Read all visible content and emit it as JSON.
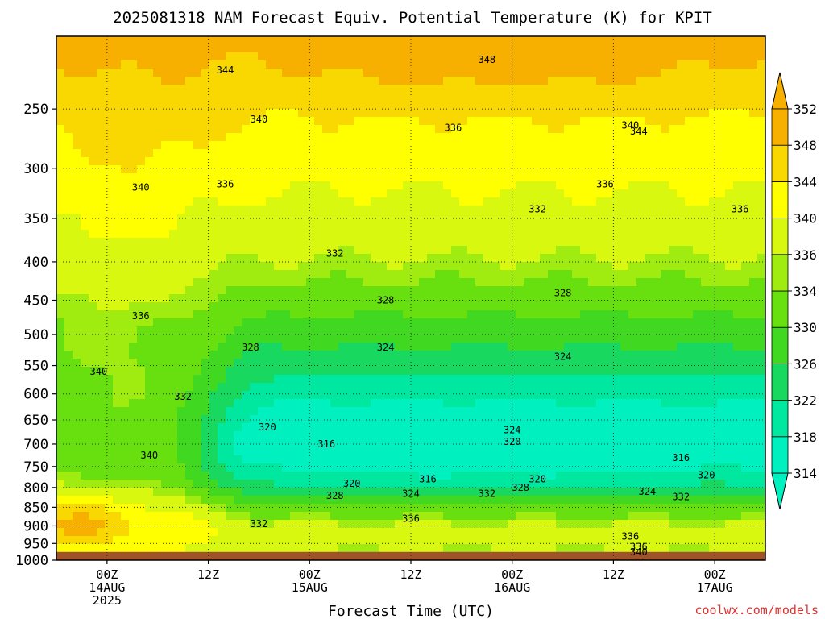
{
  "chart_data": {
    "type": "heatmap",
    "title": "2025081318 NAM Forecast Equiv. Potential Temperature (K) for KPIT",
    "xlabel": "Forecast Time (UTC)",
    "ylabel": "",
    "credit": "coolwx.com/models",
    "y_axis": {
      "scale": "log-pressure",
      "ticks": [
        250,
        300,
        350,
        400,
        450,
        500,
        550,
        600,
        650,
        700,
        750,
        800,
        850,
        900,
        950,
        1000
      ],
      "range": [
        200,
        1000
      ]
    },
    "x_axis": {
      "range": [
        "2025-08-13 18Z",
        "2025-08-17 06Z"
      ],
      "ticks": [
        {
          "x": "2025-08-14 00Z",
          "labels": [
            "00Z",
            "14AUG",
            "2025"
          ]
        },
        {
          "x": "2025-08-14 12Z",
          "labels": [
            "12Z"
          ]
        },
        {
          "x": "2025-08-15 00Z",
          "labels": [
            "00Z",
            "15AUG"
          ]
        },
        {
          "x": "2025-08-15 12Z",
          "labels": [
            "12Z"
          ]
        },
        {
          "x": "2025-08-16 00Z",
          "labels": [
            "00Z",
            "16AUG"
          ]
        },
        {
          "x": "2025-08-16 12Z",
          "labels": [
            "12Z"
          ]
        },
        {
          "x": "2025-08-17 00Z",
          "labels": [
            "00Z",
            "17AUG"
          ]
        }
      ]
    },
    "colorbar": {
      "unit": "K",
      "levels": [
        314,
        318,
        322,
        326,
        330,
        334,
        336,
        340,
        344,
        348,
        352
      ],
      "bins": [
        {
          "min": 314,
          "max": 318,
          "color": "#00f0c0"
        },
        {
          "min": 318,
          "max": 322,
          "color": "#00e8a0"
        },
        {
          "min": 322,
          "max": 326,
          "color": "#18d860"
        },
        {
          "min": 326,
          "max": 330,
          "color": "#40d820"
        },
        {
          "min": 330,
          "max": 334,
          "color": "#68e010"
        },
        {
          "min": 334,
          "max": 336,
          "color": "#a0ec10"
        },
        {
          "min": 336,
          "max": 340,
          "color": "#d8f810"
        },
        {
          "min": 340,
          "max": 344,
          "color": "#ffff00"
        },
        {
          "min": 344,
          "max": 348,
          "color": "#f8d800"
        },
        {
          "min": 348,
          "max": 352,
          "color": "#f8b000"
        }
      ]
    },
    "contour_labels": [
      {
        "value": "348",
        "x": "2025-08-15 21Z",
        "p": 215
      },
      {
        "value": "344",
        "x": "2025-08-14 14Z",
        "p": 222
      },
      {
        "value": "340",
        "x": "2025-08-14 18Z",
        "p": 258
      },
      {
        "value": "336",
        "x": "2025-08-15 17Z",
        "p": 265
      },
      {
        "value": "344",
        "x": "2025-08-16 15Z",
        "p": 268
      },
      {
        "value": "340",
        "x": "2025-08-16 14Z",
        "p": 263
      },
      {
        "value": "340",
        "x": "2025-08-14 04Z",
        "p": 318
      },
      {
        "value": "336",
        "x": "2025-08-14 14Z",
        "p": 315
      },
      {
        "value": "336",
        "x": "2025-08-16 11Z",
        "p": 315
      },
      {
        "value": "332",
        "x": "2025-08-16 03Z",
        "p": 340
      },
      {
        "value": "336",
        "x": "2025-08-17 03Z",
        "p": 340
      },
      {
        "value": "332",
        "x": "2025-08-15 03Z",
        "p": 390
      },
      {
        "value": "328",
        "x": "2025-08-15 09Z",
        "p": 450
      },
      {
        "value": "328",
        "x": "2025-08-16 06Z",
        "p": 440
      },
      {
        "value": "336",
        "x": "2025-08-14 04Z",
        "p": 472
      },
      {
        "value": "328",
        "x": "2025-08-14 17Z",
        "p": 520
      },
      {
        "value": "324",
        "x": "2025-08-15 09Z",
        "p": 520
      },
      {
        "value": "324",
        "x": "2025-08-16 06Z",
        "p": 535
      },
      {
        "value": "340",
        "x": "2025-08-13 23Z",
        "p": 560
      },
      {
        "value": "332",
        "x": "2025-08-14 09Z",
        "p": 605
      },
      {
        "value": "320",
        "x": "2025-08-14 19Z",
        "p": 665
      },
      {
        "value": "324",
        "x": "2025-08-16 00Z",
        "p": 670
      },
      {
        "value": "320",
        "x": "2025-08-16 00Z",
        "p": 695
      },
      {
        "value": "316",
        "x": "2025-08-15 02Z",
        "p": 700
      },
      {
        "value": "340",
        "x": "2025-08-14 05Z",
        "p": 725
      },
      {
        "value": "316",
        "x": "2025-08-16 20Z",
        "p": 730
      },
      {
        "value": "320",
        "x": "2025-08-15 05Z",
        "p": 790
      },
      {
        "value": "316",
        "x": "2025-08-15 14Z",
        "p": 780
      },
      {
        "value": "320",
        "x": "2025-08-16 03Z",
        "p": 780
      },
      {
        "value": "320",
        "x": "2025-08-16 23Z",
        "p": 770
      },
      {
        "value": "328",
        "x": "2025-08-15 03Z",
        "p": 820
      },
      {
        "value": "324",
        "x": "2025-08-15 12Z",
        "p": 815
      },
      {
        "value": "332",
        "x": "2025-08-15 21Z",
        "p": 815
      },
      {
        "value": "328",
        "x": "2025-08-16 01Z",
        "p": 800
      },
      {
        "value": "324",
        "x": "2025-08-16 16Z",
        "p": 810
      },
      {
        "value": "332",
        "x": "2025-08-16 20Z",
        "p": 823
      },
      {
        "value": "332",
        "x": "2025-08-14 18Z",
        "p": 895
      },
      {
        "value": "336",
        "x": "2025-08-15 12Z",
        "p": 880
      },
      {
        "value": "336",
        "x": "2025-08-16 14Z",
        "p": 930
      },
      {
        "value": "336",
        "x": "2025-08-16 15Z",
        "p": 960
      },
      {
        "value": "340",
        "x": "2025-08-16 15Z",
        "p": 975
      }
    ],
    "ground": {
      "label": "",
      "color": "#a0522d"
    },
    "grid": true
  }
}
